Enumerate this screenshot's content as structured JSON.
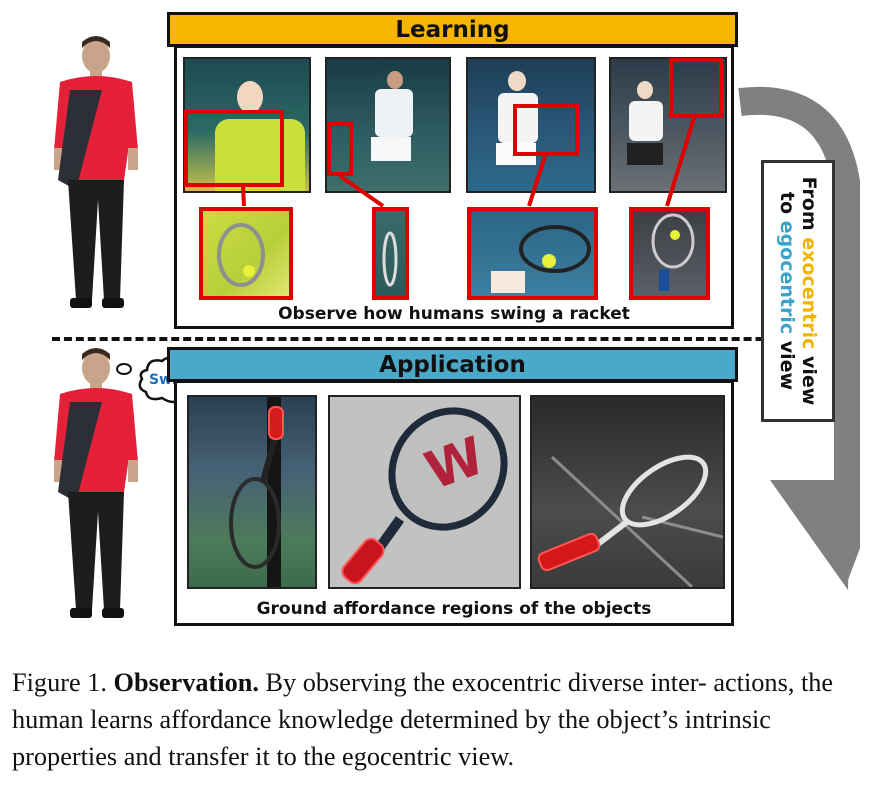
{
  "learning": {
    "title": "Learning",
    "caption": "Observe how humans swing a racket",
    "title_color": "#f7b500"
  },
  "application": {
    "title": "Application",
    "caption": "Ground affordance regions of the objects",
    "title_color": "#4aa8c9"
  },
  "thought_bubble": {
    "text": "Swing"
  },
  "side_label": {
    "line1_prefix": "From ",
    "line1_highlight": "exocentric",
    "line1_suffix": " view",
    "line2_prefix": "to ",
    "line2_highlight": "egocentric",
    "line2_suffix": " view"
  },
  "figure_caption": {
    "label": "Figure 1.",
    "bold": "Observation.",
    "text": "By observing the exocentric diverse inter- actions, the human learns affordance knowledge determined by the object’s intrinsic properties and transfer it to the egocentric view."
  },
  "colors": {
    "highlight_red": "#e00000",
    "exocentric": "#f0b400",
    "egocentric": "#3aa3c9",
    "arrow_gray": "#808080"
  }
}
